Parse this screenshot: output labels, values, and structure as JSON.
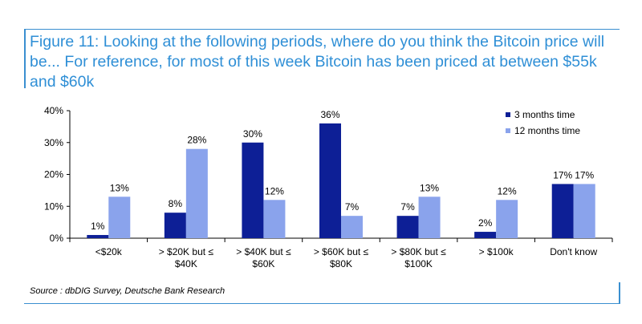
{
  "title": "Figure 11: Looking at the following periods, where do you think the Bitcoin price will be... For reference, for most of this week Bitcoin has been priced at between $55k and $60k",
  "source": "Source : dbDIG Survey, Deutsche Bank Research",
  "colors": {
    "frame": "#3a8fd0",
    "title": "#2f8fd6",
    "series1": "#0d1f96",
    "series2": "#8aa3ec"
  },
  "chart_data": {
    "type": "bar",
    "categories": [
      [
        "<$20k"
      ],
      [
        "> $20K but ≤",
        "$40K"
      ],
      [
        "> $40K but ≤",
        "$60K"
      ],
      [
        "> $60K but ≤",
        "$80K"
      ],
      [
        "> $80K but ≤",
        "$100K"
      ],
      [
        "> $100k"
      ],
      [
        "Don't know"
      ]
    ],
    "series": [
      {
        "name": "3 months time",
        "values": [
          1,
          8,
          30,
          36,
          7,
          2,
          17
        ],
        "labels": [
          "1%",
          "8%",
          "30%",
          "36%",
          "7%",
          "2%",
          "17%"
        ],
        "color": "#0d1f96"
      },
      {
        "name": "12 months time",
        "values": [
          13,
          28,
          12,
          7,
          13,
          12,
          17
        ],
        "labels": [
          "13%",
          "28%",
          "12%",
          "7%",
          "13%",
          "12%",
          "17%"
        ],
        "color": "#8aa3ec"
      }
    ],
    "yticks": [
      "0%",
      "10%",
      "20%",
      "30%",
      "40%"
    ],
    "ylim": [
      0,
      40
    ],
    "legend": "top-right",
    "grid": false
  }
}
